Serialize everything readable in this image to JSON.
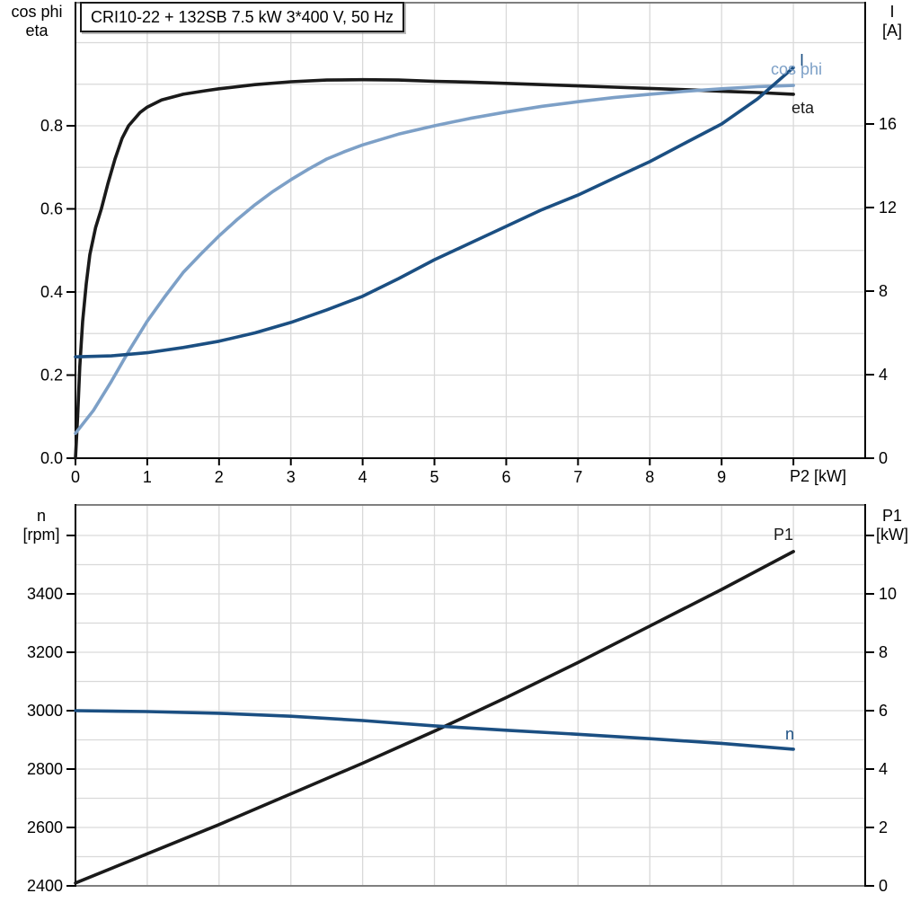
{
  "title_box": {
    "text": "CRI10-22 + 132SB   7.5 kW   3*400 V, 50 Hz"
  },
  "colors": {
    "grid": "#d9d9d9",
    "frame_gray": "#7f7f7f",
    "axis_black": "#000000",
    "curve_black": "#1a1a1a",
    "curve_dark_blue": "#1b4f82",
    "curve_light_blue": "#7da0c7"
  },
  "chart_data": [
    {
      "type": "line",
      "panel": "top",
      "title": "CRI10-22 + 132SB   7.5 kW   3*400 V, 50 Hz",
      "xlabel": "P2 [kW]",
      "xlim": [
        0,
        11
      ],
      "grid": "on",
      "x_grid": [
        1,
        2,
        3,
        4,
        5,
        6,
        7,
        8,
        9,
        10
      ],
      "x_ticks": {
        "labeled": [
          0,
          1,
          2,
          3,
          4,
          5,
          6,
          7,
          8,
          9
        ],
        "unlabeled": [
          10
        ]
      },
      "left_axis": {
        "title_line1": "cos phi",
        "title_line2": "eta",
        "range": [
          0,
          1.1
        ],
        "tick_values": [
          0,
          0.2,
          0.4,
          0.6,
          0.8
        ],
        "tick_labels": [
          "0.0",
          "0.2",
          "0.4",
          "0.6",
          "0.8"
        ],
        "grid_values": [
          0.1,
          0.2,
          0.3,
          0.4,
          0.5,
          0.6,
          0.7,
          0.8,
          0.9,
          1.0
        ]
      },
      "right_axis": {
        "title_line1": "I",
        "title_line2": "[A]",
        "range": [
          0,
          21.8
        ],
        "tick_values": [
          0,
          4,
          8,
          12,
          16
        ],
        "tick_labels": [
          "0",
          "4",
          "8",
          "12",
          "16"
        ]
      },
      "series": [
        {
          "name": "eta",
          "label": "eta",
          "axis": "left",
          "color": "#1a1a1a",
          "points": [
            [
              0,
              0
            ],
            [
              0.03,
              0.1
            ],
            [
              0.06,
              0.22
            ],
            [
              0.1,
              0.33
            ],
            [
              0.15,
              0.42
            ],
            [
              0.2,
              0.49
            ],
            [
              0.28,
              0.555
            ],
            [
              0.36,
              0.6
            ],
            [
              0.45,
              0.66
            ],
            [
              0.55,
              0.72
            ],
            [
              0.65,
              0.77
            ],
            [
              0.74,
              0.8
            ],
            [
              0.9,
              0.832
            ],
            [
              1,
              0.845
            ],
            [
              1.2,
              0.862
            ],
            [
              1.5,
              0.876
            ],
            [
              1.8,
              0.884
            ],
            [
              2,
              0.889
            ],
            [
              2.5,
              0.899
            ],
            [
              3,
              0.906
            ],
            [
              3.5,
              0.91
            ],
            [
              4,
              0.911
            ],
            [
              4.5,
              0.91
            ],
            [
              5,
              0.907
            ],
            [
              5.5,
              0.905
            ],
            [
              6,
              0.902
            ],
            [
              6.5,
              0.899
            ],
            [
              7,
              0.896
            ],
            [
              7.5,
              0.893
            ],
            [
              8,
              0.89
            ],
            [
              8.5,
              0.887
            ],
            [
              9,
              0.883
            ],
            [
              9.5,
              0.88
            ],
            [
              10,
              0.876
            ]
          ]
        },
        {
          "name": "cos-phi",
          "label": "cos phi",
          "axis": "left",
          "color": "#7da0c7",
          "points": [
            [
              0,
              0.06
            ],
            [
              0.25,
              0.115
            ],
            [
              0.5,
              0.185
            ],
            [
              0.75,
              0.26
            ],
            [
              1,
              0.33
            ],
            [
              1.25,
              0.39
            ],
            [
              1.5,
              0.447
            ],
            [
              1.75,
              0.492
            ],
            [
              2,
              0.535
            ],
            [
              2.25,
              0.574
            ],
            [
              2.5,
              0.61
            ],
            [
              2.75,
              0.642
            ],
            [
              3,
              0.67
            ],
            [
              3.25,
              0.696
            ],
            [
              3.5,
              0.72
            ],
            [
              3.75,
              0.738
            ],
            [
              4,
              0.754
            ],
            [
              4.5,
              0.78
            ],
            [
              5,
              0.8
            ],
            [
              5.5,
              0.818
            ],
            [
              6,
              0.833
            ],
            [
              6.5,
              0.847
            ],
            [
              7,
              0.858
            ],
            [
              7.5,
              0.868
            ],
            [
              8,
              0.876
            ],
            [
              8.5,
              0.883
            ],
            [
              9,
              0.889
            ],
            [
              9.5,
              0.894
            ],
            [
              10,
              0.897
            ]
          ]
        },
        {
          "name": "current",
          "label": "I",
          "axis": "right",
          "color": "#1b4f82",
          "points": [
            [
              0,
              4.85
            ],
            [
              0.5,
              4.9
            ],
            [
              1,
              5.05
            ],
            [
              1.5,
              5.3
            ],
            [
              2,
              5.6
            ],
            [
              2.5,
              6.0
            ],
            [
              3,
              6.5
            ],
            [
              3.5,
              7.1
            ],
            [
              4,
              7.75
            ],
            [
              4.5,
              8.6
            ],
            [
              5,
              9.5
            ],
            [
              5.5,
              10.3
            ],
            [
              6,
              11.1
            ],
            [
              6.5,
              11.9
            ],
            [
              7,
              12.6
            ],
            [
              7.5,
              13.4
            ],
            [
              8,
              14.2
            ],
            [
              8.5,
              15.1
            ],
            [
              9,
              16.0
            ],
            [
              9.5,
              17.2
            ],
            [
              10,
              18.7
            ]
          ]
        }
      ]
    },
    {
      "type": "line",
      "panel": "bottom",
      "xlabel": "",
      "xlim": [
        0,
        11
      ],
      "grid": "on",
      "x_grid": [
        1,
        2,
        3,
        4,
        5,
        6,
        7,
        8,
        9,
        10
      ],
      "x_ticks": {
        "labeled": [],
        "unlabeled": []
      },
      "left_axis": {
        "title_line1": "n",
        "title_line2": "[rpm]",
        "range": [
          2400,
          3700
        ],
        "tick_values": [
          2400,
          2600,
          2800,
          3000,
          3200,
          3400
        ],
        "tick_labels": [
          "2400",
          "2600",
          "2800",
          "3000",
          "3200",
          "3400"
        ],
        "extra_tick_values": [
          3600
        ],
        "grid_values": [
          2500,
          2600,
          2700,
          2800,
          2900,
          3000,
          3100,
          3200,
          3300,
          3400,
          3500,
          3600
        ]
      },
      "right_axis": {
        "title_line1": "P1",
        "title_line2": "[kW]",
        "range": [
          0,
          13
        ],
        "tick_values": [
          0,
          2,
          4,
          6,
          8,
          10
        ],
        "tick_labels": [
          "0",
          "2",
          "4",
          "6",
          "8",
          "10"
        ],
        "extra_tick_values": [
          12
        ]
      },
      "series": [
        {
          "name": "p1-power",
          "label": "P1",
          "axis": "right",
          "color": "#1a1a1a",
          "points": [
            [
              0,
              0.1
            ],
            [
              1,
              1.1
            ],
            [
              2,
              2.1
            ],
            [
              3,
              3.15
            ],
            [
              4,
              4.2
            ],
            [
              5,
              5.3
            ],
            [
              6,
              6.45
            ],
            [
              7,
              7.65
            ],
            [
              8,
              8.9
            ],
            [
              9,
              10.15
            ],
            [
              10,
              11.45
            ]
          ]
        },
        {
          "name": "speed",
          "label": "n",
          "axis": "left",
          "color": "#1b4f82",
          "points": [
            [
              0,
              3000
            ],
            [
              1,
              2997
            ],
            [
              2,
              2991
            ],
            [
              3,
              2981
            ],
            [
              4,
              2966
            ],
            [
              5,
              2948
            ],
            [
              6,
              2933
            ],
            [
              7,
              2919
            ],
            [
              8,
              2904
            ],
            [
              9,
              2888
            ],
            [
              10,
              2868
            ]
          ]
        }
      ]
    }
  ]
}
